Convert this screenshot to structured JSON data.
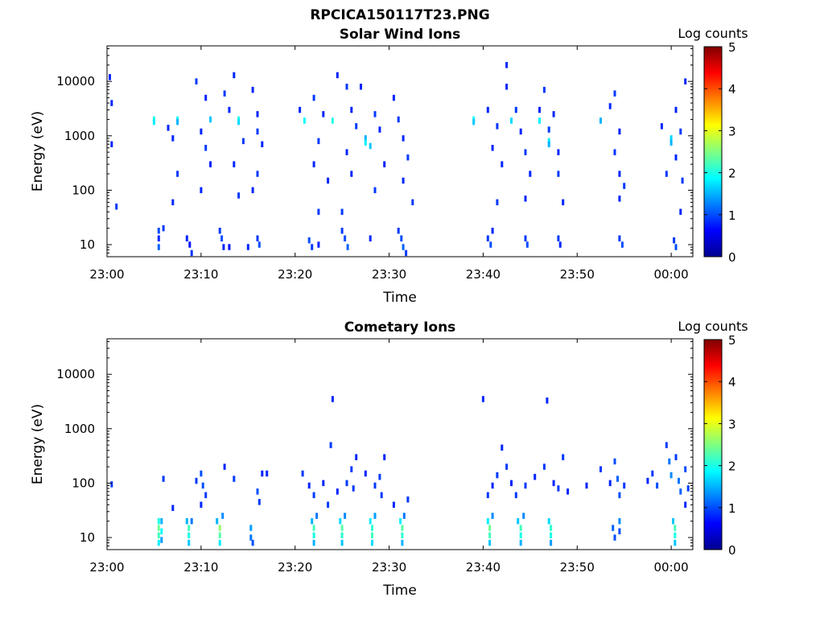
{
  "figure_title": "RPCICA150117T23.PNG",
  "colormap": [
    "#00008f",
    "#0000ff",
    "#0080ff",
    "#00ffff",
    "#80ff80",
    "#ffff00",
    "#ff8000",
    "#ff0000",
    "#800000"
  ],
  "chart_data": [
    {
      "type": "heatmap",
      "title": "Solar Wind Ions",
      "xlabel": "Time",
      "ylabel": "Energy (eV)",
      "yscale": "log",
      "ylim": [
        6,
        45000
      ],
      "xlim": [
        "23:00",
        "00:02"
      ],
      "xticks": [
        "23:00",
        "23:10",
        "23:20",
        "23:30",
        "23:40",
        "23:50",
        "00:00"
      ],
      "yticks": [
        10,
        100,
        1000,
        10000
      ],
      "ytick_labels": [
        "10",
        "100",
        "1000",
        "10000"
      ],
      "colorbar": {
        "label": "Log counts",
        "range": [
          0,
          5
        ],
        "ticks": [
          "0",
          "1",
          "2",
          "3",
          "4",
          "5"
        ]
      },
      "cells": [
        [
          5.0,
          2000,
          2.0
        ],
        [
          5.0,
          1800,
          1.8
        ],
        [
          7.5,
          2000,
          1.9
        ],
        [
          7.5,
          1800,
          1.5
        ],
        [
          11.0,
          2000,
          1.6
        ],
        [
          14.0,
          2000,
          2.0
        ],
        [
          14.0,
          1800,
          1.7
        ],
        [
          21.0,
          1900,
          1.9
        ],
        [
          24.0,
          1900,
          2.0
        ],
        [
          27.5,
          900,
          1.5
        ],
        [
          27.5,
          750,
          1.8
        ],
        [
          28.0,
          650,
          1.6
        ],
        [
          39.0,
          2000,
          1.9
        ],
        [
          39.0,
          1800,
          1.6
        ],
        [
          43.0,
          1900,
          1.7
        ],
        [
          46.0,
          1900,
          1.8
        ],
        [
          47.0,
          800,
          1.8
        ],
        [
          47.0,
          700,
          1.5
        ],
        [
          52.5,
          1900,
          1.5
        ],
        [
          60.0,
          900,
          1.7
        ],
        [
          60.0,
          750,
          1.5
        ],
        [
          5.5,
          18,
          1.0
        ],
        [
          5.5,
          13,
          0.8
        ],
        [
          5.5,
          9,
          1.1
        ],
        [
          6.0,
          20,
          0.9
        ],
        [
          8.5,
          13,
          0.8
        ],
        [
          8.8,
          10,
          0.7
        ],
        [
          9.0,
          7,
          0.9
        ],
        [
          12.0,
          18,
          0.9
        ],
        [
          12.2,
          13,
          1.0
        ],
        [
          12.4,
          9,
          0.8
        ],
        [
          13.0,
          9,
          0.7
        ],
        [
          15.0,
          9,
          0.8
        ],
        [
          16.0,
          13,
          0.9
        ],
        [
          16.2,
          10,
          1.0
        ],
        [
          21.5,
          12,
          1.0
        ],
        [
          21.8,
          9,
          0.9
        ],
        [
          22.5,
          10,
          0.8
        ],
        [
          25.0,
          18,
          0.9
        ],
        [
          25.3,
          13,
          1.0
        ],
        [
          25.6,
          9,
          1.1
        ],
        [
          28.0,
          13,
          0.8
        ],
        [
          31.0,
          18,
          0.9
        ],
        [
          31.3,
          13,
          1.0
        ],
        [
          31.5,
          9,
          1.1
        ],
        [
          31.8,
          7,
          0.9
        ],
        [
          40.5,
          13,
          0.9
        ],
        [
          40.8,
          10,
          1.0
        ],
        [
          41.0,
          18,
          0.8
        ],
        [
          44.5,
          13,
          0.9
        ],
        [
          44.7,
          10,
          1.0
        ],
        [
          48.0,
          13,
          0.9
        ],
        [
          48.2,
          10,
          0.8
        ],
        [
          54.5,
          13,
          0.9
        ],
        [
          54.8,
          10,
          1.0
        ],
        [
          60.3,
          12,
          0.9
        ],
        [
          60.5,
          9,
          1.0
        ],
        [
          0.3,
          12000,
          0.8
        ],
        [
          0.5,
          4000,
          0.8
        ],
        [
          0.5,
          700,
          0.8
        ],
        [
          1.0,
          50,
          0.9
        ],
        [
          6.5,
          1400,
          0.8
        ],
        [
          7.0,
          900,
          0.8
        ],
        [
          7.5,
          200,
          0.9
        ],
        [
          7.0,
          60,
          0.8
        ],
        [
          9.5,
          10000,
          0.9
        ],
        [
          10.5,
          5000,
          0.8
        ],
        [
          10.0,
          1200,
          0.8
        ],
        [
          10.5,
          600,
          0.9
        ],
        [
          11.0,
          300,
          0.8
        ],
        [
          10.0,
          100,
          0.8
        ],
        [
          12.5,
          6000,
          0.9
        ],
        [
          13.0,
          3000,
          0.8
        ],
        [
          13.5,
          13000,
          0.8
        ],
        [
          14.5,
          800,
          0.9
        ],
        [
          13.5,
          300,
          0.8
        ],
        [
          14.0,
          80,
          0.9
        ],
        [
          15.5,
          7000,
          0.8
        ],
        [
          16.0,
          2500,
          0.8
        ],
        [
          16.0,
          1200,
          0.9
        ],
        [
          16.5,
          700,
          0.8
        ],
        [
          16.0,
          200,
          0.9
        ],
        [
          15.5,
          100,
          0.8
        ],
        [
          20.5,
          3000,
          0.8
        ],
        [
          22.0,
          5000,
          0.9
        ],
        [
          23.0,
          2500,
          0.8
        ],
        [
          22.5,
          800,
          0.9
        ],
        [
          22.0,
          300,
          0.8
        ],
        [
          23.5,
          150,
          0.8
        ],
        [
          22.5,
          40,
          0.9
        ],
        [
          24.5,
          13000,
          0.8
        ],
        [
          25.5,
          8000,
          0.9
        ],
        [
          26.0,
          3000,
          0.8
        ],
        [
          26.5,
          1500,
          0.9
        ],
        [
          25.5,
          500,
          0.8
        ],
        [
          26.0,
          200,
          0.8
        ],
        [
          25.0,
          40,
          0.9
        ],
        [
          27.0,
          8000,
          0.8
        ],
        [
          28.5,
          2500,
          0.9
        ],
        [
          29.0,
          1300,
          0.8
        ],
        [
          29.5,
          300,
          0.8
        ],
        [
          28.5,
          100,
          0.9
        ],
        [
          30.5,
          5000,
          0.8
        ],
        [
          31.0,
          2000,
          0.9
        ],
        [
          31.5,
          900,
          0.8
        ],
        [
          32.0,
          400,
          0.9
        ],
        [
          31.5,
          150,
          0.8
        ],
        [
          32.5,
          60,
          0.9
        ],
        [
          40.5,
          3000,
          0.8
        ],
        [
          41.5,
          1500,
          0.9
        ],
        [
          41.0,
          600,
          0.8
        ],
        [
          42.0,
          300,
          0.8
        ],
        [
          41.5,
          60,
          0.9
        ],
        [
          42.5,
          20000,
          0.8
        ],
        [
          42.5,
          8000,
          0.8
        ],
        [
          43.5,
          3000,
          0.9
        ],
        [
          44.0,
          1200,
          0.8
        ],
        [
          44.5,
          500,
          0.9
        ],
        [
          45.0,
          200,
          0.8
        ],
        [
          44.5,
          70,
          0.8
        ],
        [
          46.5,
          7000,
          0.9
        ],
        [
          46.0,
          3000,
          0.8
        ],
        [
          47.5,
          2500,
          0.8
        ],
        [
          47.0,
          1300,
          0.9
        ],
        [
          48.0,
          500,
          0.8
        ],
        [
          48.0,
          200,
          0.9
        ],
        [
          48.5,
          60,
          0.8
        ],
        [
          53.5,
          3500,
          0.8
        ],
        [
          54.0,
          6000,
          0.9
        ],
        [
          54.5,
          1200,
          0.8
        ],
        [
          54.0,
          500,
          0.9
        ],
        [
          54.5,
          200,
          0.8
        ],
        [
          55.0,
          120,
          0.9
        ],
        [
          54.5,
          70,
          0.8
        ],
        [
          59.0,
          1500,
          0.8
        ],
        [
          59.5,
          200,
          0.9
        ],
        [
          60.5,
          3000,
          0.8
        ],
        [
          61.0,
          1200,
          0.9
        ],
        [
          60.5,
          400,
          0.8
        ],
        [
          61.5,
          10000,
          0.8
        ],
        [
          61.2,
          150,
          0.9
        ],
        [
          61.0,
          40,
          0.8
        ]
      ]
    },
    {
      "type": "heatmap",
      "title": "Cometary Ions",
      "xlabel": "Time",
      "ylabel": "Energy (eV)",
      "yscale": "log",
      "ylim": [
        6,
        45000
      ],
      "xlim": [
        "23:00",
        "00:02"
      ],
      "xticks": [
        "23:00",
        "23:10",
        "23:20",
        "23:30",
        "23:40",
        "23:50",
        "00:00"
      ],
      "yticks": [
        10,
        100,
        1000,
        10000
      ],
      "ytick_labels": [
        "10",
        "100",
        "1000",
        "10000"
      ],
      "colorbar": {
        "label": "Log counts",
        "range": [
          0,
          5
        ],
        "ticks": [
          "0",
          "1",
          "2",
          "3",
          "4",
          "5"
        ]
      },
      "cells": [
        [
          5.5,
          20,
          2.0
        ],
        [
          5.5,
          15,
          2.4
        ],
        [
          5.5,
          11,
          2.2
        ],
        [
          5.5,
          8,
          1.8
        ],
        [
          5.8,
          20,
          1.5
        ],
        [
          5.8,
          13,
          1.9
        ],
        [
          5.8,
          9,
          1.4
        ],
        [
          8.5,
          20,
          1.5
        ],
        [
          8.7,
          15,
          2.2
        ],
        [
          8.7,
          11,
          2.0
        ],
        [
          8.7,
          8,
          1.6
        ],
        [
          9.0,
          20,
          1.2
        ],
        [
          11.7,
          20,
          1.5
        ],
        [
          12.0,
          15,
          2.6
        ],
        [
          12.0,
          11,
          2.3
        ],
        [
          12.0,
          8,
          1.8
        ],
        [
          12.3,
          25,
          1.3
        ],
        [
          15.3,
          15,
          1.4
        ],
        [
          15.3,
          10,
          1.2
        ],
        [
          15.5,
          8,
          1.0
        ],
        [
          21.8,
          20,
          1.5
        ],
        [
          22.0,
          15,
          2.2
        ],
        [
          22.0,
          11,
          2.0
        ],
        [
          22.0,
          8,
          1.5
        ],
        [
          22.3,
          25,
          1.2
        ],
        [
          24.8,
          20,
          1.7
        ],
        [
          25.0,
          15,
          2.3
        ],
        [
          25.0,
          11,
          2.1
        ],
        [
          25.0,
          8,
          1.6
        ],
        [
          25.3,
          25,
          1.3
        ],
        [
          28.0,
          20,
          1.8
        ],
        [
          28.2,
          15,
          2.1
        ],
        [
          28.2,
          11,
          2.2
        ],
        [
          28.2,
          8,
          1.7
        ],
        [
          28.5,
          25,
          1.4
        ],
        [
          31.2,
          20,
          1.8
        ],
        [
          31.4,
          15,
          2.3
        ],
        [
          31.4,
          11,
          2.1
        ],
        [
          31.4,
          8,
          1.5
        ],
        [
          31.6,
          25,
          1.2
        ],
        [
          40.5,
          20,
          1.8
        ],
        [
          40.7,
          15,
          2.4
        ],
        [
          40.7,
          11,
          2.2
        ],
        [
          40.7,
          8,
          1.6
        ],
        [
          41.0,
          25,
          1.3
        ],
        [
          43.7,
          20,
          1.6
        ],
        [
          44.0,
          15,
          2.2
        ],
        [
          44.0,
          11,
          2.0
        ],
        [
          44.0,
          8,
          1.5
        ],
        [
          44.3,
          25,
          1.3
        ],
        [
          47.0,
          20,
          1.7
        ],
        [
          47.2,
          15,
          2.1
        ],
        [
          47.2,
          11,
          2.0
        ],
        [
          47.2,
          8,
          1.4
        ],
        [
          53.8,
          15,
          1.1
        ],
        [
          54.0,
          10,
          1.0
        ],
        [
          54.5,
          20,
          1.3
        ],
        [
          54.5,
          13,
          1.0
        ],
        [
          60.2,
          20,
          1.6
        ],
        [
          60.4,
          15,
          2.2
        ],
        [
          60.4,
          11,
          2.0
        ],
        [
          60.4,
          8,
          1.6
        ],
        [
          0.5,
          95,
          0.9
        ],
        [
          6.0,
          120,
          0.9
        ],
        [
          7.0,
          35,
          0.8
        ],
        [
          9.5,
          110,
          0.9
        ],
        [
          10.0,
          150,
          1.0
        ],
        [
          10.2,
          90,
          1.0
        ],
        [
          10.5,
          60,
          0.9
        ],
        [
          10.0,
          40,
          0.8
        ],
        [
          12.5,
          200,
          0.8
        ],
        [
          13.5,
          120,
          0.9
        ],
        [
          16.0,
          70,
          1.0
        ],
        [
          16.2,
          45,
          0.9
        ],
        [
          16.5,
          150,
          0.8
        ],
        [
          17.0,
          150,
          0.8
        ],
        [
          20.8,
          150,
          0.9
        ],
        [
          21.5,
          90,
          0.8
        ],
        [
          22.0,
          60,
          0.9
        ],
        [
          23.0,
          100,
          0.8
        ],
        [
          23.5,
          40,
          0.9
        ],
        [
          24.0,
          3500,
          0.8
        ],
        [
          23.8,
          500,
          0.9
        ],
        [
          24.5,
          70,
          0.8
        ],
        [
          25.5,
          100,
          0.9
        ],
        [
          26.0,
          180,
          0.9
        ],
        [
          26.5,
          300,
          0.8
        ],
        [
          26.2,
          80,
          0.9
        ],
        [
          27.5,
          150,
          0.8
        ],
        [
          28.5,
          90,
          0.9
        ],
        [
          29.0,
          130,
          0.9
        ],
        [
          29.5,
          300,
          0.8
        ],
        [
          29.2,
          60,
          0.9
        ],
        [
          30.5,
          40,
          0.8
        ],
        [
          32.0,
          50,
          0.9
        ],
        [
          40.0,
          3500,
          0.8
        ],
        [
          40.5,
          60,
          0.9
        ],
        [
          41.0,
          90,
          0.8
        ],
        [
          41.5,
          140,
          0.9
        ],
        [
          42.0,
          450,
          0.8
        ],
        [
          42.5,
          200,
          0.9
        ],
        [
          43.0,
          100,
          0.8
        ],
        [
          43.5,
          60,
          0.9
        ],
        [
          44.5,
          90,
          0.9
        ],
        [
          45.5,
          130,
          0.8
        ],
        [
          46.8,
          3300,
          0.8
        ],
        [
          46.5,
          200,
          0.9
        ],
        [
          47.5,
          100,
          0.8
        ],
        [
          48.0,
          80,
          0.9
        ],
        [
          48.5,
          300,
          0.9
        ],
        [
          49.0,
          70,
          0.8
        ],
        [
          51.0,
          90,
          0.8
        ],
        [
          52.5,
          180,
          0.9
        ],
        [
          53.5,
          100,
          0.8
        ],
        [
          54.0,
          250,
          1.0
        ],
        [
          54.3,
          120,
          1.1
        ],
        [
          54.5,
          60,
          1.0
        ],
        [
          55.0,
          90,
          0.9
        ],
        [
          57.5,
          110,
          0.8
        ],
        [
          58.0,
          150,
          0.9
        ],
        [
          58.5,
          90,
          1.0
        ],
        [
          59.5,
          500,
          0.9
        ],
        [
          59.8,
          250,
          1.2
        ],
        [
          60.0,
          140,
          1.3
        ],
        [
          60.5,
          300,
          0.9
        ],
        [
          60.8,
          110,
          1.2
        ],
        [
          61.0,
          70,
          1.1
        ],
        [
          61.5,
          180,
          1.0
        ],
        [
          61.8,
          80,
          0.9
        ],
        [
          61.5,
          40,
          0.8
        ]
      ]
    }
  ]
}
